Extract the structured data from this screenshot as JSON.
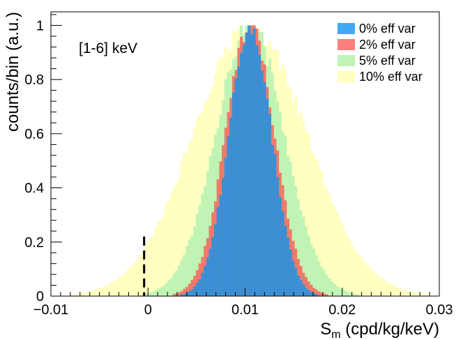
{
  "chart_data": {
    "type": "histogram",
    "annotation": "[1-6] keV",
    "xlabel_main": "S",
    "xlabel_sub": "m",
    "xlabel_rest": " (cpd/kg/keV)",
    "ylabel": "counts/bin (a.u.)",
    "xlim": [
      -0.01,
      0.03
    ],
    "ylim": [
      0,
      1.05
    ],
    "xticks": [
      -0.01,
      0,
      0.01,
      0.02,
      0.03
    ],
    "xtick_labels": [
      "−0.01",
      "0",
      "0.01",
      "0.02",
      "0.03"
    ],
    "yticks": [
      0,
      0.2,
      0.4,
      0.6,
      0.8,
      1
    ],
    "ytick_labels": [
      "0",
      "0.2",
      "0.4",
      "0.6",
      "0.8",
      "1"
    ],
    "grid": false,
    "legend_position": "top-right",
    "center": 0.0105,
    "bins": 150,
    "series": [
      {
        "name": "10% eff var",
        "color": "#ffffc0",
        "sigma": 0.0058
      },
      {
        "name": "5% eff var",
        "color": "#c0f4b4",
        "sigma": 0.0035
      },
      {
        "name": "2% eff var",
        "color": "#f07a6a",
        "sigma": 0.0025
      },
      {
        "name": "0% eff var",
        "color": "#3d8fd4",
        "sigma": 0.0022
      }
    ],
    "legend_order": [
      3,
      2,
      1,
      0
    ],
    "legend_swatch_colors": [
      "#3fa9f5",
      "#ff7f7f",
      "#c0f4b4",
      "#ffffc0"
    ],
    "marker": {
      "x": -0.0004,
      "y_top": 0.22,
      "style": "dashed"
    }
  }
}
